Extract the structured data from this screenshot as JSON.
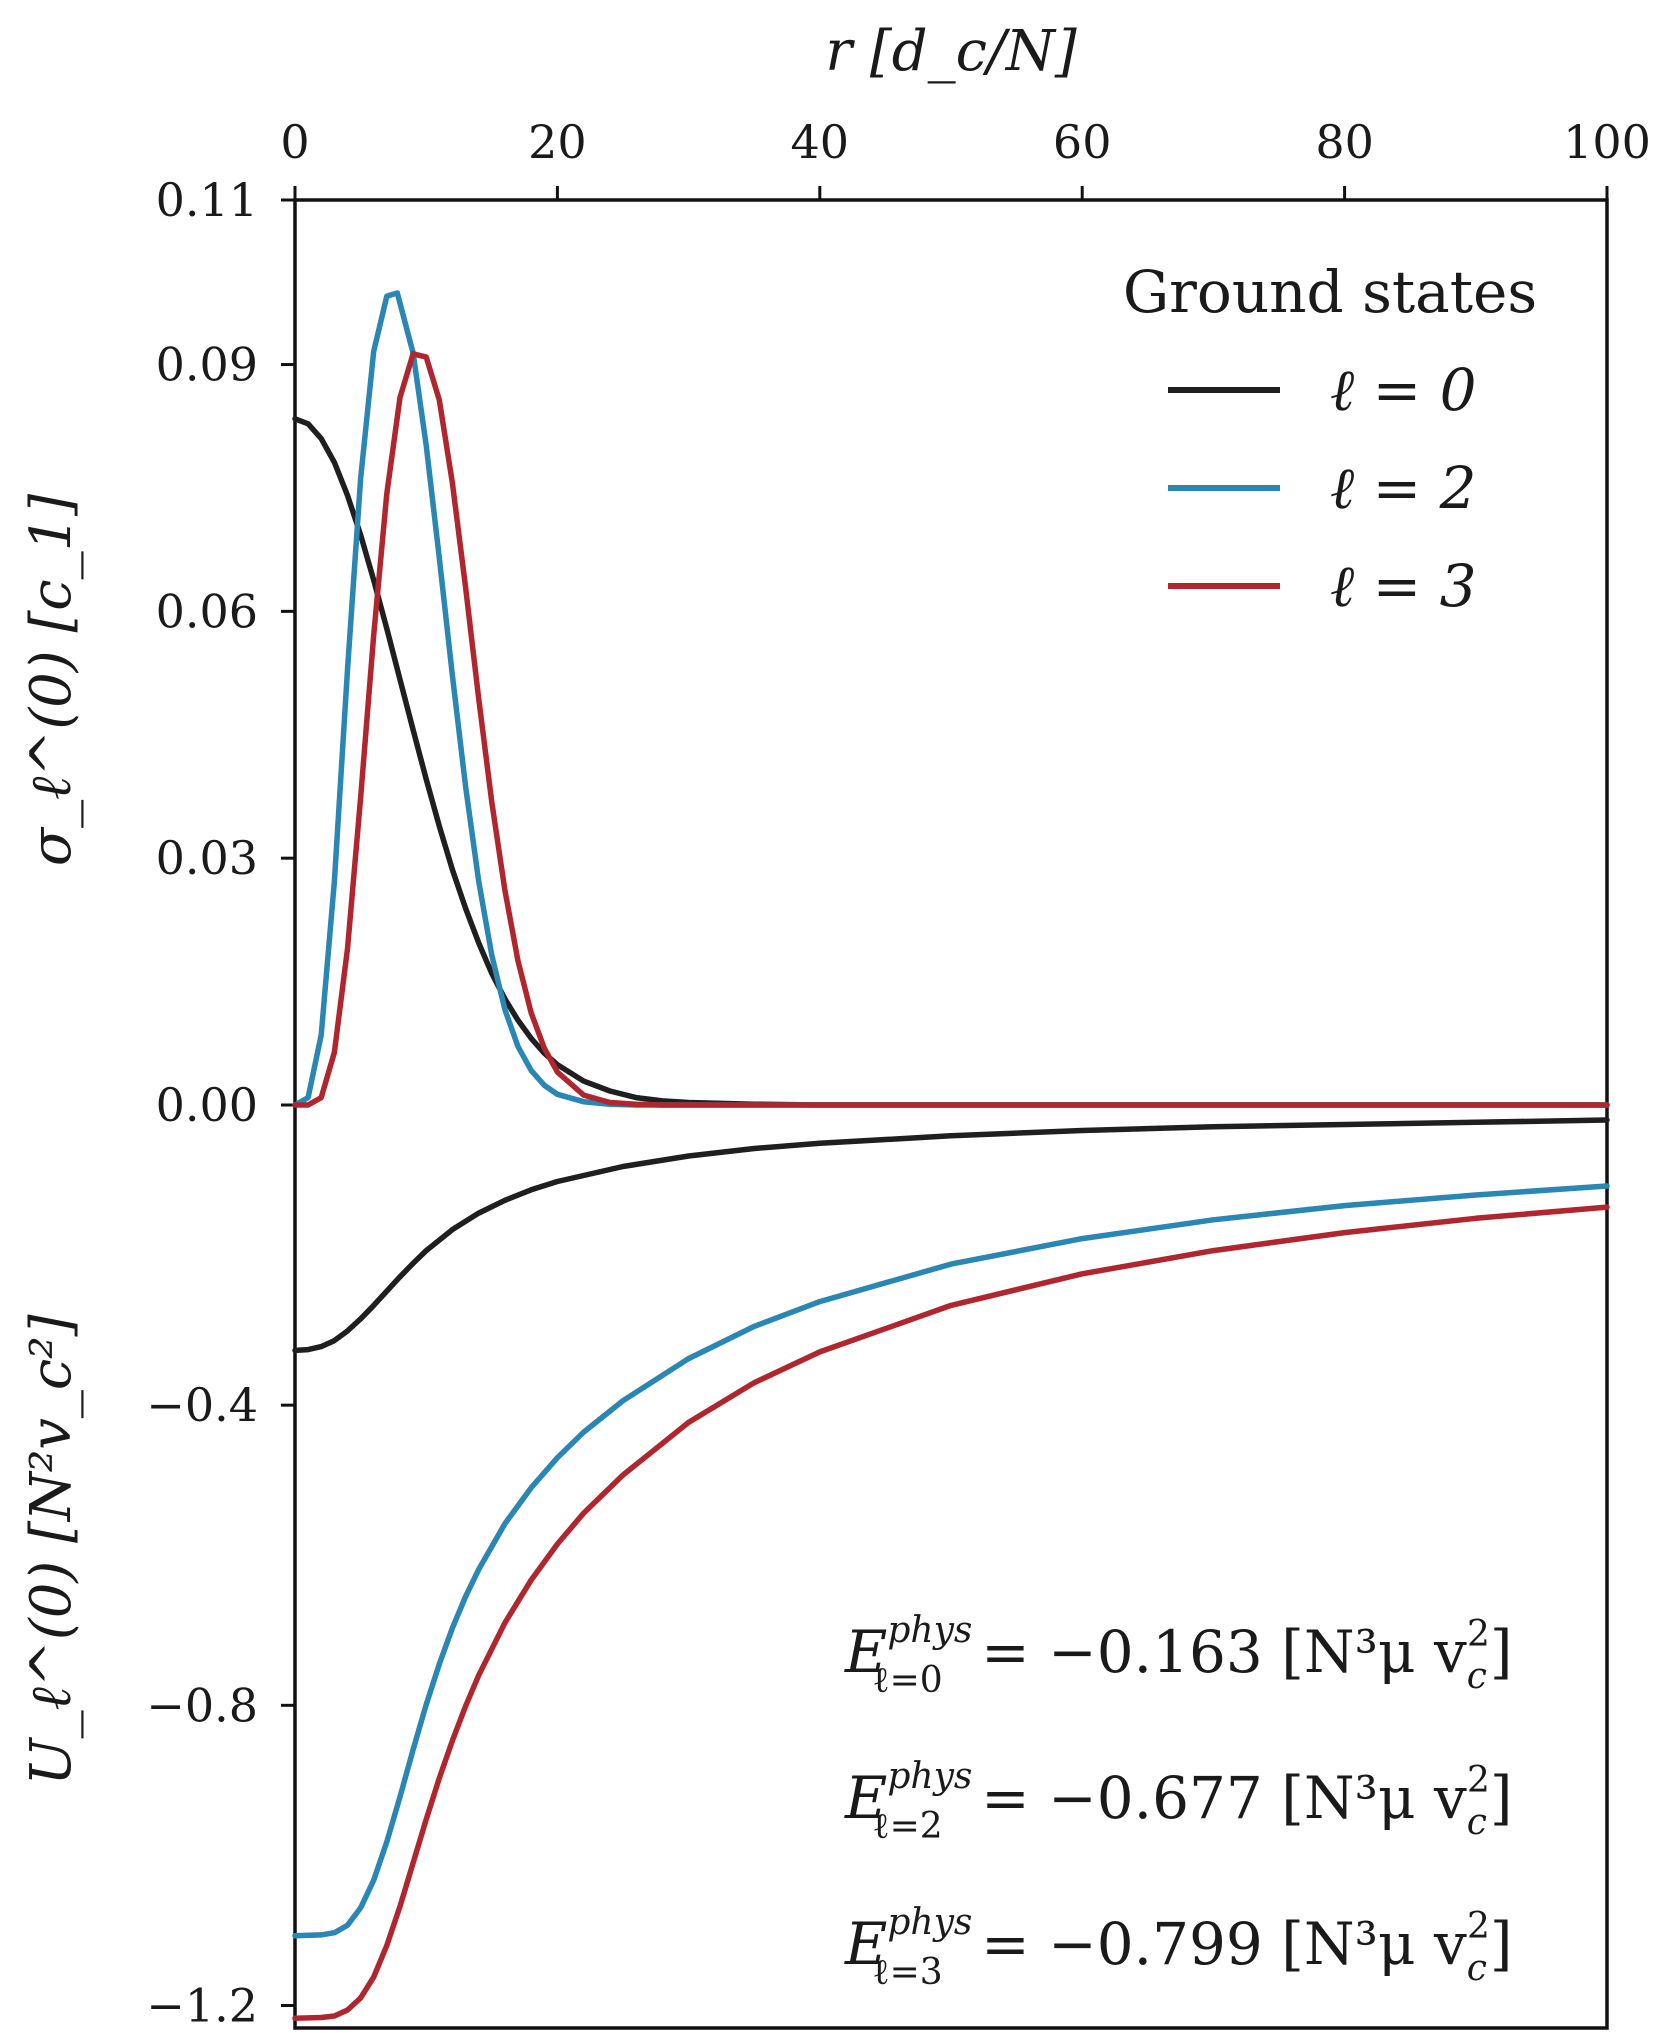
{
  "chart_data": [
    {
      "panel": "top",
      "type": "line",
      "xlabel": "r [d_c/N]",
      "ylabel": "σ_ℓ^(0) [c_1]",
      "xlim": [
        0,
        100
      ],
      "ylim": [
        0.0,
        0.11
      ],
      "x_ticks": [
        "0",
        "20",
        "40",
        "60",
        "80",
        "100"
      ],
      "y_ticks": [
        "0.00",
        "0.03",
        "0.06",
        "0.09",
        "0.11"
      ],
      "legend": {
        "title": "Ground states",
        "position": "top-right",
        "entries": [
          "ℓ = 0",
          "ℓ = 2",
          "ℓ = 3"
        ]
      },
      "series": [
        {
          "name": "ℓ = 0",
          "color": "#1f1f1f",
          "x": [
            0,
            1,
            2,
            3,
            4,
            5,
            6,
            7,
            8,
            9,
            10,
            11,
            12,
            13,
            14,
            15,
            16,
            17,
            18,
            19,
            20,
            22,
            24,
            26,
            28,
            30,
            35,
            40,
            50,
            60,
            70,
            80,
            90,
            100
          ],
          "y": [
            0.0834,
            0.0828,
            0.081,
            0.0781,
            0.0741,
            0.0693,
            0.0638,
            0.0579,
            0.0517,
            0.0456,
            0.0396,
            0.0339,
            0.0286,
            0.0239,
            0.0197,
            0.016,
            0.0129,
            0.0103,
            0.0081,
            0.0063,
            0.0049,
            0.0029,
            0.0017,
            0.0009,
            0.0005,
            0.0003,
            0.0001,
            0.0,
            0.0,
            0.0,
            0.0,
            0.0,
            0.0,
            0.0
          ]
        },
        {
          "name": "ℓ = 2",
          "color": "#2a86b2",
          "x": [
            0,
            1,
            2,
            3,
            4,
            5,
            6,
            7,
            7.8,
            9,
            10,
            11,
            12,
            13,
            14,
            15,
            16,
            17,
            18,
            19,
            20,
            22,
            24,
            26,
            28,
            30,
            35,
            40,
            50,
            60,
            70,
            80,
            90,
            100
          ],
          "y": [
            0.0,
            0.0009,
            0.0085,
            0.0272,
            0.0529,
            0.0761,
            0.0916,
            0.0983,
            0.0987,
            0.0914,
            0.0802,
            0.0665,
            0.0522,
            0.0387,
            0.0272,
            0.0182,
            0.0116,
            0.0071,
            0.0042,
            0.0024,
            0.0013,
            0.0004,
            0.0001,
            0.0,
            0.0,
            0.0,
            0.0,
            0.0,
            0.0,
            0.0,
            0.0,
            0.0,
            0.0,
            0.0
          ]
        },
        {
          "name": "ℓ = 3",
          "color": "#b0262f",
          "x": [
            0,
            1,
            2,
            3,
            4,
            5,
            6,
            7,
            8,
            9,
            10,
            11,
            12,
            13,
            14,
            15,
            16,
            17,
            18,
            19,
            20,
            22,
            24,
            26,
            28,
            30,
            35,
            40,
            50,
            60,
            70,
            80,
            90,
            100
          ],
          "y": [
            0.0,
            0.0,
            0.0009,
            0.0064,
            0.019,
            0.0373,
            0.0571,
            0.0743,
            0.086,
            0.0913,
            0.0909,
            0.0857,
            0.0756,
            0.0629,
            0.0494,
            0.0368,
            0.0261,
            0.0175,
            0.0112,
            0.0069,
            0.004,
            0.0012,
            0.0003,
            0.0001,
            0.0,
            0.0,
            0.0,
            0.0,
            0.0,
            0.0,
            0.0,
            0.0,
            0.0,
            0.0
          ]
        }
      ]
    },
    {
      "panel": "bottom",
      "type": "line",
      "xlabel": "",
      "ylabel": "U_ℓ^(0) [N²v_c²]",
      "xlim": [
        0,
        100
      ],
      "ylim": [
        -1.23,
        0.0
      ],
      "y_ticks": [
        "−0.4",
        "−0.8",
        "−1.2"
      ],
      "y_tick_values": [
        -0.4,
        -0.8,
        -1.2
      ],
      "series": [
        {
          "name": "ℓ = 0",
          "color": "#1f1f1f",
          "x": [
            0,
            1,
            2,
            3,
            4,
            5,
            6,
            7,
            8,
            9,
            10,
            12,
            14,
            16,
            18,
            20,
            25,
            30,
            35,
            40,
            50,
            60,
            70,
            80,
            90,
            100
          ],
          "y": [
            -0.327,
            -0.326,
            -0.322,
            -0.314,
            -0.301,
            -0.285,
            -0.267,
            -0.248,
            -0.229,
            -0.211,
            -0.194,
            -0.166,
            -0.144,
            -0.127,
            -0.113,
            -0.102,
            -0.082,
            -0.068,
            -0.058,
            -0.051,
            -0.041,
            -0.034,
            -0.029,
            -0.026,
            -0.023,
            -0.02
          ]
        },
        {
          "name": "ℓ = 2",
          "color": "#2a86b2",
          "x": [
            0,
            2,
            3,
            4,
            5,
            6,
            7,
            8,
            9,
            10,
            11,
            12,
            13,
            14,
            16,
            18,
            20,
            22,
            25,
            30,
            35,
            40,
            50,
            60,
            70,
            80,
            90,
            100
          ],
          "y": [
            -1.107,
            -1.106,
            -1.103,
            -1.093,
            -1.07,
            -1.033,
            -0.982,
            -0.922,
            -0.859,
            -0.799,
            -0.745,
            -0.697,
            -0.655,
            -0.619,
            -0.558,
            -0.51,
            -0.47,
            -0.436,
            -0.394,
            -0.338,
            -0.295,
            -0.262,
            -0.212,
            -0.178,
            -0.153,
            -0.134,
            -0.12,
            -0.108
          ]
        },
        {
          "name": "ℓ = 3",
          "color": "#b0262f",
          "x": [
            0,
            2,
            3,
            4,
            5,
            6,
            7,
            8,
            9,
            10,
            11,
            12,
            13,
            14,
            16,
            18,
            20,
            22,
            25,
            30,
            35,
            40,
            50,
            60,
            70,
            80,
            90,
            100
          ],
          "y": [
            -1.217,
            -1.216,
            -1.214,
            -1.206,
            -1.19,
            -1.162,
            -1.12,
            -1.068,
            -1.01,
            -0.952,
            -0.897,
            -0.847,
            -0.801,
            -0.76,
            -0.69,
            -0.633,
            -0.585,
            -0.544,
            -0.493,
            -0.423,
            -0.37,
            -0.329,
            -0.267,
            -0.225,
            -0.194,
            -0.17,
            -0.151,
            -0.136
          ]
        }
      ],
      "annotations": [
        {
          "symbol": "E",
          "sup": "phys",
          "sub": "ℓ=0",
          "text": " = −0.163 [N³μ v",
          "unit_end": "]"
        },
        {
          "symbol": "E",
          "sup": "phys",
          "sub": "ℓ=2",
          "text": " = −0.677 [N³μ v",
          "unit_end": "]"
        },
        {
          "symbol": "E",
          "sup": "phys",
          "sub": "ℓ=3",
          "text": " = −0.799 [N³μ v",
          "unit_end": "]"
        }
      ]
    }
  ],
  "unit_sub": "c",
  "unit_sup": "2"
}
